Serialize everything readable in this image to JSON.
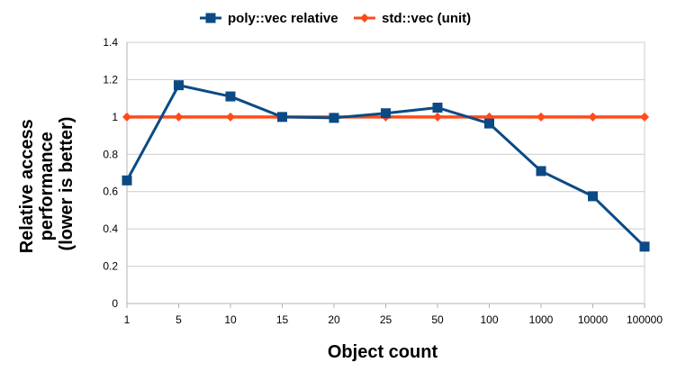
{
  "chart_data": {
    "type": "line",
    "categories": [
      "1",
      "5",
      "10",
      "15",
      "20",
      "25",
      "50",
      "100",
      "1000",
      "10000",
      "100000"
    ],
    "series": [
      {
        "name": "poly::vec relative",
        "color": "#0b4a85",
        "marker": "square",
        "values": [
          0.66,
          1.17,
          1.11,
          1.0,
          0.995,
          1.02,
          1.05,
          0.965,
          0.71,
          0.575,
          0.305
        ]
      },
      {
        "name": "std::vec (unit)",
        "color": "#ff4b1a",
        "marker": "diamond",
        "values": [
          1,
          1,
          1,
          1,
          1,
          1,
          1,
          1,
          1,
          1,
          1
        ]
      }
    ],
    "xlabel": "Object count",
    "ylabel": [
      "Relative access",
      "performance",
      "(lower is better)"
    ],
    "ylim": [
      0,
      1.4
    ],
    "yticks": [
      0,
      0.2,
      0.4,
      0.6,
      0.8,
      1,
      1.2,
      1.4
    ],
    "ytick_labels": [
      "0",
      "0.2",
      "0.4",
      "0.6",
      "0.8",
      "1",
      "1.2",
      "1.4"
    ],
    "grid": "horizontal",
    "legend_position": "top"
  }
}
